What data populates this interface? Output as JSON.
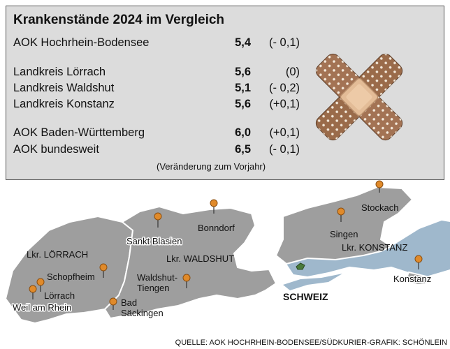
{
  "panel": {
    "title": "Krankenstände 2024 im Vergleich",
    "rows": [
      {
        "label": "AOK Hochrhein-Bodensee",
        "value": "5,4",
        "change": "(- 0,1)"
      },
      {
        "label": "Landkreis Lörrach",
        "value": "5,6",
        "change": "(0)"
      },
      {
        "label": "Landkreis Waldshut",
        "value": "5,1",
        "change": "(- 0,2)"
      },
      {
        "label": "Landkreis Konstanz",
        "value": "5,6",
        "change": "(+0,1)"
      },
      {
        "label": "AOK Baden-Württemberg",
        "value": "6,0",
        "change": "(+0,1)"
      },
      {
        "label": "AOK bundesweit",
        "value": "6,5",
        "change": "(- 0,1)"
      }
    ],
    "note": "(Veränderung zum Vorjahr)"
  },
  "map": {
    "districts": {
      "loerrach": "Lkr. LÖRRACH",
      "waldshut": "Lkr. WALDSHUT",
      "konstanz": "Lkr. KONSTANZ"
    },
    "country": "SCHWEIZ",
    "towns": [
      {
        "name": "Schopfheim"
      },
      {
        "name": "Lörrach"
      },
      {
        "name": "Weil am Rhein"
      },
      {
        "name": "Bad"
      },
      {
        "name": "Säckingen"
      },
      {
        "name": "Sankt Blasien"
      },
      {
        "name": "Bonndorf"
      },
      {
        "name": "Waldshut-"
      },
      {
        "name": "Tiengen"
      },
      {
        "name": "Singen"
      },
      {
        "name": "Stockach"
      },
      {
        "name": "Konstanz"
      }
    ],
    "colors": {
      "district": "#9e9e9e",
      "border": "#ffffff",
      "water": "#9fb8cc",
      "pin": "#e08a2a"
    }
  },
  "source": "QUELLE: AOK HOCHRHEIN-BODENSEE/SÜDKURIER-GRAFIK: SCHÖNLEIN"
}
